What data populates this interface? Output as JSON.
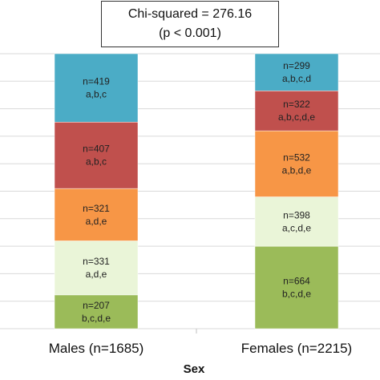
{
  "annotation": {
    "line1": "Chi-squared = 276.16",
    "line2": "(p < 0.001)"
  },
  "chart_data": {
    "type": "bar",
    "stacked": true,
    "normalized": true,
    "xlabel": "Sex",
    "categories": [
      "Males (n=1685)",
      "Females (n=2215)"
    ],
    "series": [
      {
        "color": "#9bbb59",
        "values": [
          207,
          664
        ],
        "labels": [
          "n=207\nb,c,d,e",
          "n=664\nb,c,d,e"
        ]
      },
      {
        "color": "#eaf5d8",
        "values": [
          331,
          398
        ],
        "labels": [
          "n=331\na,d,e",
          "n=398\na,c,d,e"
        ]
      },
      {
        "color": "#f79646",
        "values": [
          321,
          532
        ],
        "labels": [
          "n=321\na,d,e",
          "n=532\na,b,d,e"
        ]
      },
      {
        "color": "#c0504d",
        "values": [
          407,
          322
        ],
        "labels": [
          "n=407\na,b,c",
          "n=322\na,b,c,d,e"
        ]
      },
      {
        "color": "#4bacc6",
        "values": [
          419,
          299
        ],
        "labels": [
          "n=419\na,b,c",
          "n=299\na,b,c,d"
        ]
      }
    ],
    "grid": true
  }
}
